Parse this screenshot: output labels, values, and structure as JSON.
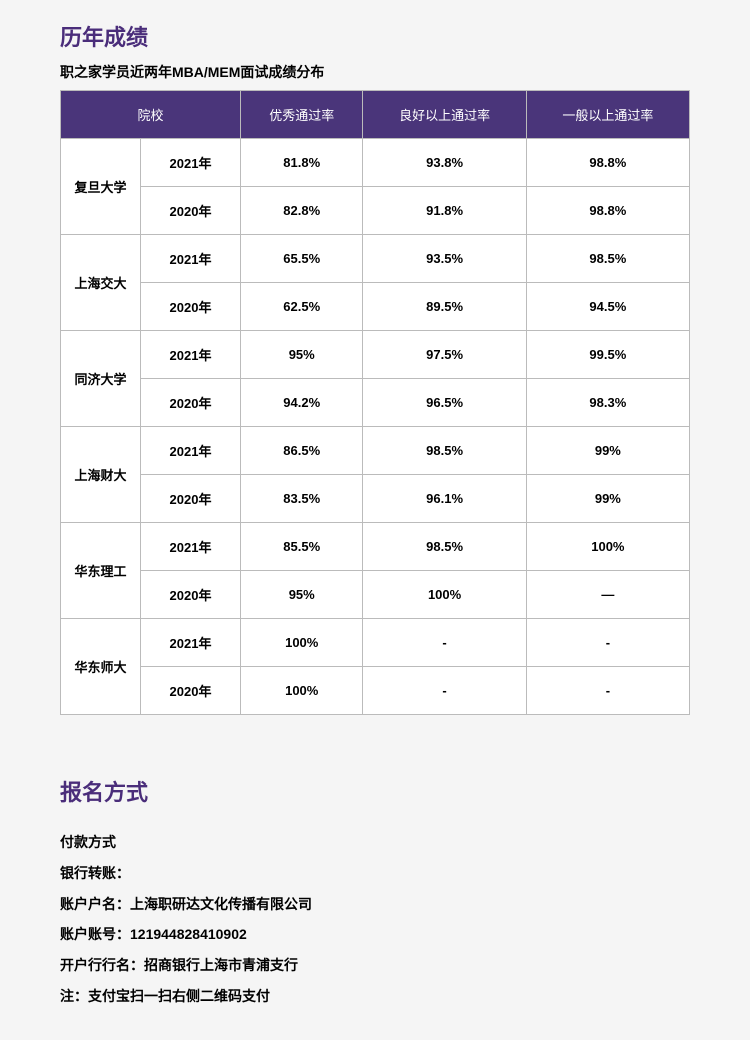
{
  "results": {
    "title": "历年成绩",
    "subtitle": "职之家学员近两年MBA/MEM面试成绩分布",
    "headers": {
      "school": "院校",
      "excellent": "优秀通过率",
      "good": "良好以上通过率",
      "normal": "一般以上通过率"
    },
    "schools": [
      {
        "name": "复旦大学",
        "rows": [
          {
            "year": "2021年",
            "excellent": "81.8%",
            "good": "93.8%",
            "normal": "98.8%"
          },
          {
            "year": "2020年",
            "excellent": "82.8%",
            "good": "91.8%",
            "normal": "98.8%"
          }
        ]
      },
      {
        "name": "上海交大",
        "rows": [
          {
            "year": "2021年",
            "excellent": "65.5%",
            "good": "93.5%",
            "normal": "98.5%"
          },
          {
            "year": "2020年",
            "excellent": "62.5%",
            "good": "89.5%",
            "normal": "94.5%"
          }
        ]
      },
      {
        "name": "同济大学",
        "rows": [
          {
            "year": "2021年",
            "excellent": "95%",
            "good": "97.5%",
            "normal": "99.5%"
          },
          {
            "year": "2020年",
            "excellent": "94.2%",
            "good": "96.5%",
            "normal": "98.3%"
          }
        ]
      },
      {
        "name": "上海财大",
        "rows": [
          {
            "year": "2021年",
            "excellent": "86.5%",
            "good": "98.5%",
            "normal": "99%"
          },
          {
            "year": "2020年",
            "excellent": "83.5%",
            "good": "96.1%",
            "normal": "99%"
          }
        ]
      },
      {
        "name": "华东理工",
        "rows": [
          {
            "year": "2021年",
            "excellent": "85.5%",
            "good": "98.5%",
            "normal": "100%"
          },
          {
            "year": "2020年",
            "excellent": "95%",
            "good": "100%",
            "normal": "—"
          }
        ]
      },
      {
        "name": "华东师大",
        "rows": [
          {
            "year": "2021年",
            "excellent": "100%",
            "good": "-",
            "normal": "-"
          },
          {
            "year": "2020年",
            "excellent": "100%",
            "good": "-",
            "normal": "-"
          }
        ]
      }
    ]
  },
  "registration": {
    "title": "报名方式",
    "lines": [
      "付款方式",
      "银行转账：",
      "账户户名：上海职研达文化传播有限公司",
      "账户账号：121944828410902",
      "开户行行名：招商银行上海市青浦支行",
      "注：支付宝扫一扫右侧二维码支付"
    ]
  },
  "styling": {
    "header_bg": "#4a357a",
    "title_color": "#4a2d7a",
    "border_color": "#bbb",
    "page_bg": "#f5f5f5",
    "cell_bg": "#ffffff"
  }
}
